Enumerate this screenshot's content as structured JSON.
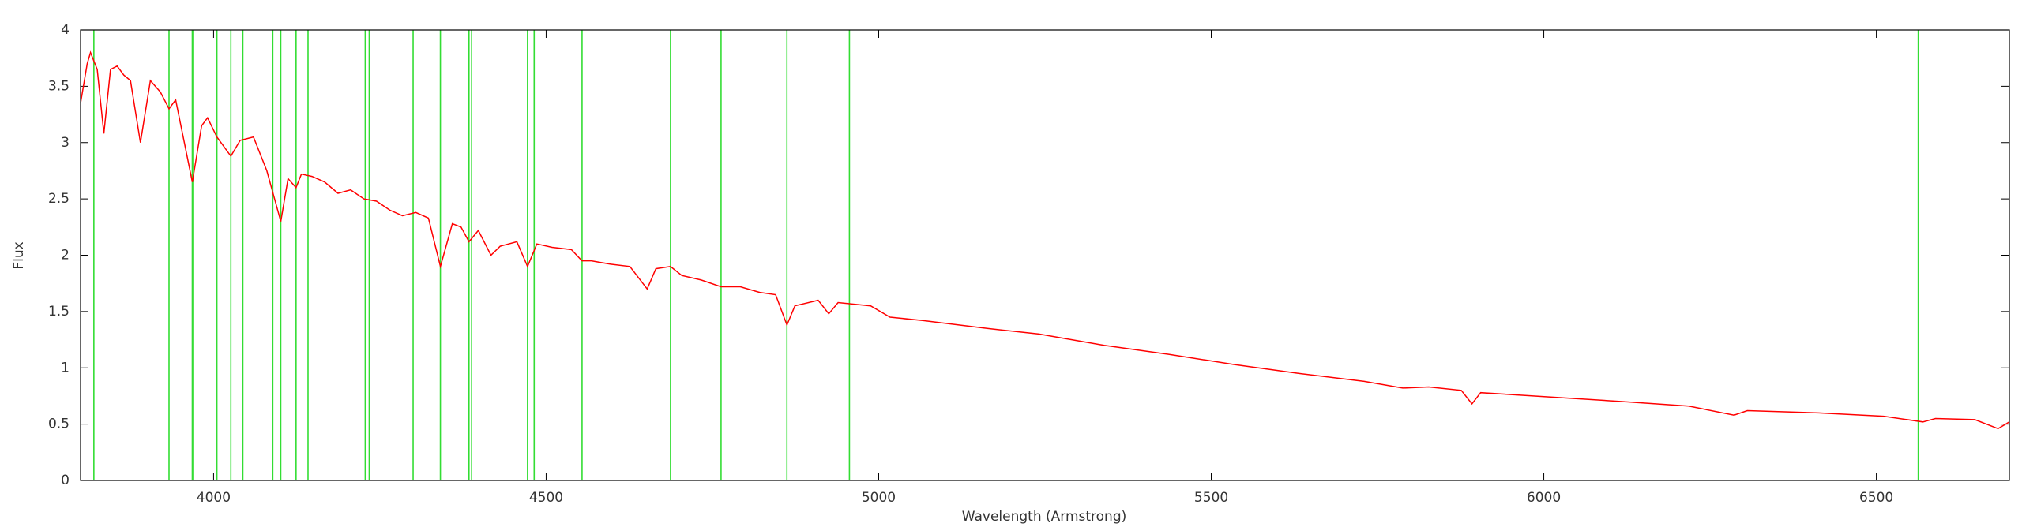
{
  "chart_data": {
    "type": "line",
    "x_label": "Wavelength (Armstrong)",
    "y_label": "Flux",
    "xlim": [
      3800,
      6700
    ],
    "ylim": [
      0,
      4
    ],
    "xticks": [
      4000,
      4500,
      5000,
      5500,
      6000,
      6500
    ],
    "yticks": [
      0,
      0.5,
      1,
      1.5,
      2,
      2.5,
      3,
      3.5,
      4
    ],
    "color": "#ff0000",
    "x": [
      3800,
      3810,
      3815,
      3825,
      3835,
      3845,
      3855,
      3865,
      3875,
      3890,
      3905,
      3920,
      3933,
      3943,
      3968,
      3982,
      3991,
      4005,
      4026,
      4040,
      4060,
      4080,
      4101,
      4112,
      4124,
      4132,
      4148,
      4167,
      4187,
      4206,
      4226,
      4245,
      4265,
      4284,
      4304,
      4323,
      4341,
      4359,
      4372,
      4384,
      4398,
      4417,
      4431,
      4456,
      4472,
      4486,
      4509,
      4538,
      4554,
      4568,
      4597,
      4626,
      4652,
      4665,
      4687,
      4704,
      4733,
      4763,
      4792,
      4821,
      4845,
      4862,
      4874,
      4909,
      4925,
      4939,
      4988,
      5017,
      5066,
      5163,
      5241,
      5339,
      5436,
      5534,
      5632,
      5730,
      5788,
      5827,
      5876,
      5892,
      5905,
      5984,
      6120,
      6218,
      6286,
      6306,
      6413,
      6511,
      6570,
      6589,
      6648,
      6683,
      6700
    ],
    "values": [
      3.35,
      3.7,
      3.8,
      3.65,
      3.08,
      3.65,
      3.68,
      3.6,
      3.55,
      3.0,
      3.55,
      3.45,
      3.3,
      3.38,
      2.65,
      3.15,
      3.22,
      3.05,
      2.88,
      3.02,
      3.05,
      2.75,
      2.3,
      2.68,
      2.6,
      2.72,
      2.7,
      2.65,
      2.55,
      2.58,
      2.5,
      2.48,
      2.4,
      2.35,
      2.38,
      2.33,
      1.9,
      2.28,
      2.25,
      2.12,
      2.22,
      2.0,
      2.08,
      2.12,
      1.9,
      2.1,
      2.07,
      2.05,
      1.95,
      1.95,
      1.92,
      1.9,
      1.7,
      1.88,
      1.9,
      1.82,
      1.78,
      1.72,
      1.72,
      1.67,
      1.65,
      1.38,
      1.55,
      1.6,
      1.48,
      1.58,
      1.55,
      1.45,
      1.42,
      1.35,
      1.3,
      1.2,
      1.12,
      1.03,
      0.95,
      0.88,
      0.82,
      0.83,
      0.8,
      0.68,
      0.78,
      0.75,
      0.7,
      0.66,
      0.58,
      0.62,
      0.6,
      0.57,
      0.52,
      0.55,
      0.54,
      0.46,
      0.52
    ],
    "lines": {
      "color": "#33dd33",
      "x": [
        3820,
        3933,
        3968,
        3970,
        4005,
        4026,
        4044,
        4089,
        4101,
        4124,
        4142,
        4228,
        4234,
        4300,
        4341,
        4384,
        4388,
        4472,
        4482,
        4554,
        4687,
        4763,
        4862,
        4956,
        6563
      ]
    }
  }
}
